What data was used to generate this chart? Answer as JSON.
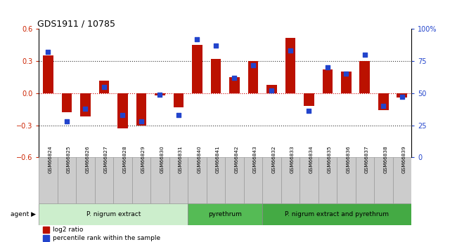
{
  "title": "GDS1911 / 10785",
  "categories": [
    "GSM66824",
    "GSM66825",
    "GSM66826",
    "GSM66827",
    "GSM66828",
    "GSM66829",
    "GSM66830",
    "GSM66831",
    "GSM66840",
    "GSM66841",
    "GSM66842",
    "GSM66843",
    "GSM66832",
    "GSM66833",
    "GSM66834",
    "GSM66835",
    "GSM66836",
    "GSM66837",
    "GSM66838",
    "GSM66839"
  ],
  "log2_ratio": [
    0.35,
    -0.18,
    -0.22,
    0.12,
    -0.33,
    -0.3,
    -0.02,
    -0.13,
    0.45,
    0.32,
    0.15,
    0.3,
    0.08,
    0.52,
    -0.12,
    0.22,
    0.2,
    0.3,
    -0.16,
    -0.04
  ],
  "percentile": [
    82,
    28,
    38,
    55,
    33,
    28,
    49,
    33,
    92,
    87,
    62,
    72,
    52,
    83,
    36,
    70,
    65,
    80,
    40,
    47
  ],
  "ylim_left": [
    -0.6,
    0.6
  ],
  "ylim_right": [
    0,
    100
  ],
  "yticks_left": [
    -0.6,
    -0.3,
    0.0,
    0.3,
    0.6
  ],
  "yticks_right": [
    0,
    25,
    50,
    75,
    100
  ],
  "ytick_labels_right": [
    "0",
    "25",
    "50",
    "75",
    "100%"
  ],
  "hlines": [
    0.3,
    0.0,
    -0.3
  ],
  "bar_color": "#bb1100",
  "dot_color": "#2244cc",
  "bar_width": 0.55,
  "dot_size": 22,
  "agent_groups": [
    {
      "label": "P. nigrum extract",
      "start": 0,
      "end": 8,
      "color": "#cceecc"
    },
    {
      "label": "pyrethrum",
      "start": 8,
      "end": 12,
      "color": "#55bb55"
    },
    {
      "label": "P. nigrum extract and pyrethrum",
      "start": 12,
      "end": 20,
      "color": "#44aa44"
    }
  ],
  "legend_items": [
    {
      "label": "log2 ratio",
      "color": "#bb1100"
    },
    {
      "label": "percentile rank within the sample",
      "color": "#2244cc"
    }
  ],
  "tick_label_color_left": "#cc2200",
  "tick_label_color_right": "#2244cc",
  "xtick_bg": "#cccccc",
  "xtick_border": "#999999"
}
